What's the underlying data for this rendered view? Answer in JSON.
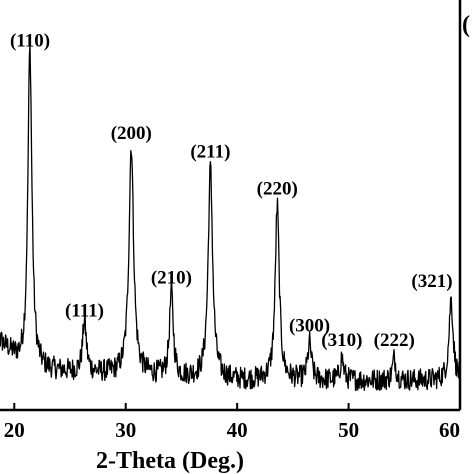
{
  "chart_data": {
    "type": "line",
    "title": "",
    "panel_letter": "(",
    "xlabel": "2-Theta (Deg.)",
    "ylabel": "",
    "xlim": [
      18,
      60
    ],
    "ylim": [
      0,
      100
    ],
    "x_ticks": [
      20,
      30,
      40,
      50,
      60
    ],
    "x_tick_labels": [
      "20",
      "30",
      "40",
      "50",
      "60"
    ],
    "grid": false,
    "legend": "none",
    "line_color": "#000000",
    "baseline": 8,
    "noise": 3,
    "peaks": [
      {
        "label": "(110)",
        "x": 21.4,
        "height": 95,
        "width": 0.22
      },
      {
        "label": "(111)",
        "x": 26.3,
        "height": 22,
        "width": 0.2
      },
      {
        "label": "(200)",
        "x": 30.5,
        "height": 70,
        "width": 0.25
      },
      {
        "label": "(210)",
        "x": 34.1,
        "height": 31,
        "width": 0.2
      },
      {
        "label": "(211)",
        "x": 37.6,
        "height": 65,
        "width": 0.24
      },
      {
        "label": "(220)",
        "x": 43.6,
        "height": 55,
        "width": 0.22
      },
      {
        "label": "(300)",
        "x": 46.5,
        "height": 18,
        "width": 0.2
      },
      {
        "label": "(310)",
        "x": 49.4,
        "height": 14,
        "width": 0.18
      },
      {
        "label": "(222)",
        "x": 54.1,
        "height": 14,
        "width": 0.18
      },
      {
        "label": "(321)",
        "x": 59.2,
        "height": 30,
        "width": 0.22
      }
    ]
  }
}
